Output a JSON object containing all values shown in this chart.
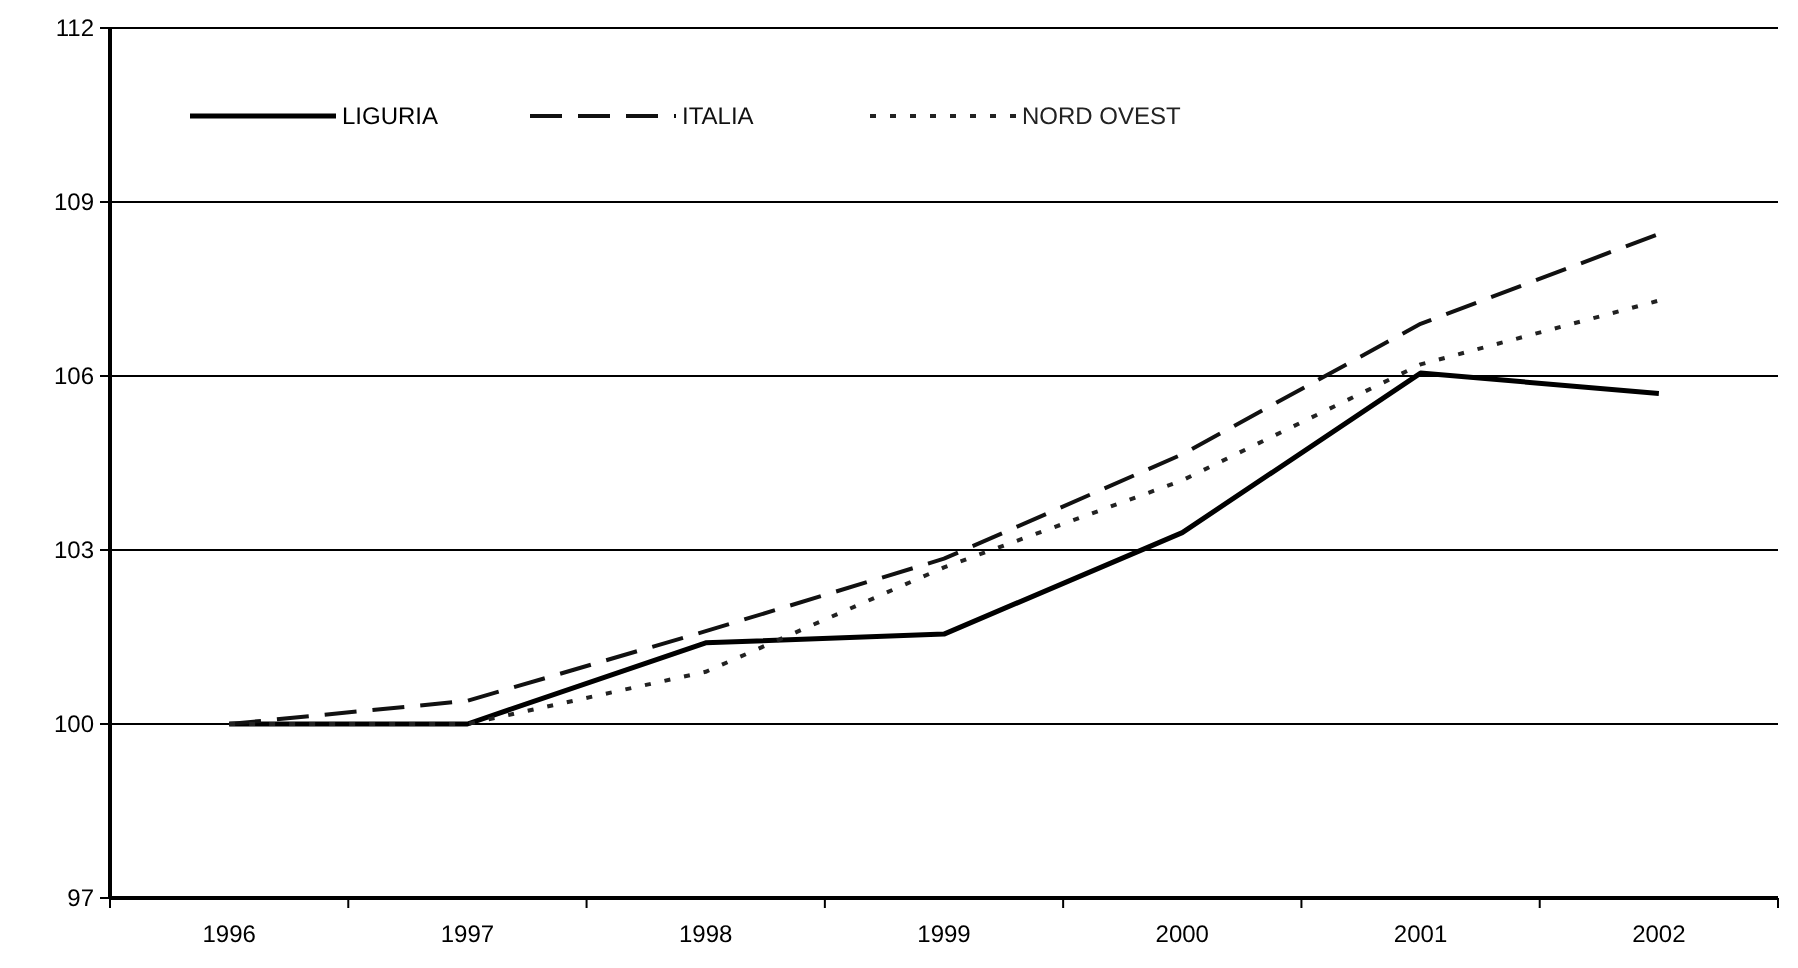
{
  "chart_data": {
    "type": "line",
    "categories": [
      "1996",
      "1997",
      "1998",
      "1999",
      "2000",
      "2001",
      "2002"
    ],
    "series": [
      {
        "name": "LIGURIA",
        "color": "#000000",
        "line_style": "solid",
        "values": [
          100,
          100,
          101.4,
          101.55,
          103.3,
          106.05,
          105.7
        ]
      },
      {
        "name": "ITALIA",
        "color": "#111111",
        "line_style": "dashed",
        "values": [
          100,
          100.4,
          101.6,
          102.85,
          104.65,
          106.9,
          108.45
        ]
      },
      {
        "name": "NORD OVEST",
        "color": "#222222",
        "line_style": "dotted",
        "values": [
          100,
          100,
          100.9,
          102.7,
          104.2,
          106.2,
          107.3
        ]
      }
    ],
    "ylim": [
      97,
      112
    ],
    "yticks": [
      97,
      100,
      103,
      106,
      109,
      112
    ],
    "grid": "y",
    "legend": "top left",
    "marker": "none"
  }
}
